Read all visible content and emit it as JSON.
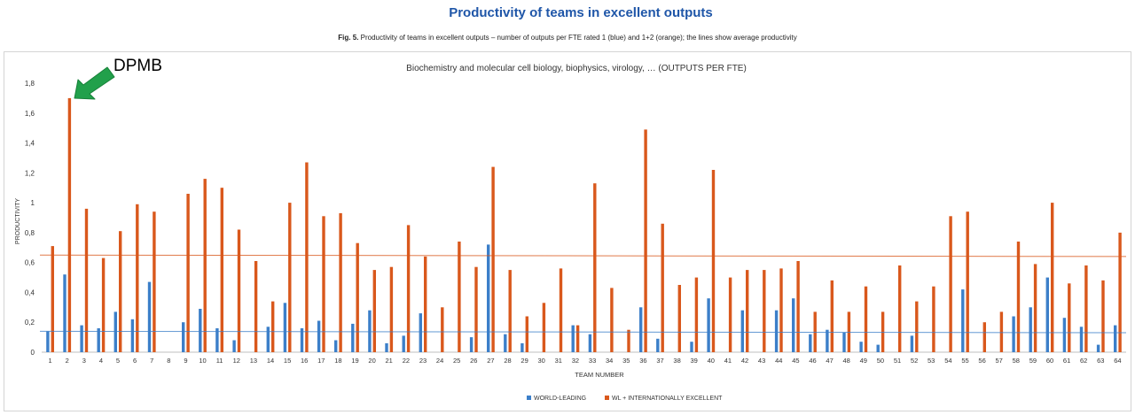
{
  "page": {
    "title": "Productivity of teams in excellent outputs",
    "caption_bold": "Fig. 5.",
    "caption_text": "Productivity of teams in excellent outputs – number of outputs per FTE rated 1 (blue) and 1+2 (orange); the lines show average productivity"
  },
  "annotation": {
    "label": "DPMB",
    "target_team": "2",
    "arrow_color": "#22a04b"
  },
  "chart_data": {
    "type": "bar",
    "title": "Biochemistry and molecular cell biology, biophysics, virology, … (OUTPUTS PER FTE)",
    "xlabel": "TEAM NUMBER",
    "ylabel": "PRODUCTIVITY",
    "ylim": [
      0,
      1.8
    ],
    "yticks": [
      "0",
      "0,2",
      "0,4",
      "0,6",
      "0,8",
      "1",
      "1,2",
      "1,4",
      "1,6",
      "1,8"
    ],
    "grid": false,
    "legend_position": "bottom-center",
    "categories": [
      "1",
      "2",
      "3",
      "4",
      "5",
      "6",
      "7",
      "8",
      "9",
      "10",
      "11",
      "12",
      "13",
      "14",
      "15",
      "16",
      "17",
      "18",
      "19",
      "20",
      "21",
      "22",
      "23",
      "24",
      "25",
      "26",
      "27",
      "28",
      "29",
      "30",
      "31",
      "32",
      "33",
      "34",
      "35",
      "36",
      "37",
      "38",
      "39",
      "40",
      "41",
      "42",
      "43",
      "44",
      "45",
      "46",
      "47",
      "48",
      "49",
      "50",
      "51",
      "52",
      "53",
      "54",
      "55",
      "56",
      "57",
      "58",
      "59",
      "60",
      "61",
      "62",
      "63",
      "64"
    ],
    "series": [
      {
        "name": "WORLD-LEADING",
        "color": "#3c7fc9",
        "values": [
          0.14,
          0.52,
          0.18,
          0.16,
          0.27,
          0.22,
          0.47,
          0,
          0.2,
          0.29,
          0.16,
          0.08,
          0,
          0.17,
          0.33,
          0.16,
          0.21,
          0.08,
          0.19,
          0.28,
          0.06,
          0.11,
          0.26,
          0,
          0,
          0.1,
          0.72,
          0.12,
          0.06,
          0,
          0,
          0.18,
          0.12,
          0,
          0,
          0.3,
          0.09,
          0,
          0.07,
          0.36,
          0,
          0.28,
          0,
          0.28,
          0.36,
          0.12,
          0.15,
          0.13,
          0.07,
          0.05,
          0,
          0.11,
          0,
          0,
          0.42,
          0,
          0,
          0.24,
          0.3,
          0.5,
          0.23,
          0.17,
          0.05,
          0.18
        ]
      },
      {
        "name": "WL + INTERNATIONALLY EXCELLENT",
        "color": "#d9581c",
        "values": [
          0.71,
          1.7,
          0.96,
          0.63,
          0.81,
          0.99,
          0.94,
          0,
          1.06,
          1.16,
          1.1,
          0.82,
          0.61,
          0.34,
          1.0,
          1.27,
          0.91,
          0.93,
          0.73,
          0.55,
          0.57,
          0.85,
          0.64,
          0.3,
          0.74,
          0.57,
          1.24,
          0.55,
          0.24,
          0.33,
          0.56,
          0.18,
          1.13,
          0.43,
          0.15,
          1.49,
          0.86,
          0.45,
          0.5,
          1.22,
          0.5,
          0.55,
          0.55,
          0.56,
          0.61,
          0.27,
          0.48,
          0.27,
          0.44,
          0.27,
          0.58,
          0.34,
          0.44,
          0.91,
          0.94,
          0.2,
          0.27,
          0.74,
          0.59,
          1.0,
          0.46,
          0.58,
          0.48,
          0.8
        ]
      }
    ],
    "average_lines": [
      {
        "series": "WORLD-LEADING",
        "start": 0.14,
        "end": 0.13,
        "color": "#3c7fc9"
      },
      {
        "series": "WL + INTERNATIONALLY EXCELLENT",
        "start": 0.65,
        "end": 0.64,
        "color": "#d9581c"
      }
    ]
  }
}
